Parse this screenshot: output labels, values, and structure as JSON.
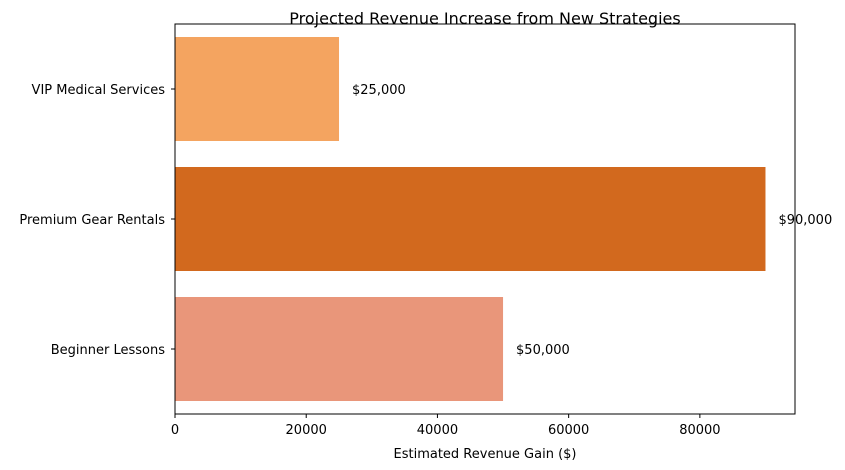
{
  "chart_data": {
    "type": "bar",
    "orientation": "horizontal",
    "title": "Projected Revenue Increase from New Strategies",
    "xlabel": "Estimated Revenue Gain ($)",
    "ylabel": "",
    "categories": [
      "VIP Medical Services",
      "Premium Gear Rentals",
      "Beginner Lessons"
    ],
    "values": [
      25000,
      90000,
      50000
    ],
    "data_labels": [
      "$25,000",
      "$90,000",
      "$50,000"
    ],
    "bar_colors": [
      "#F4A460",
      "#D2691E",
      "#E9967A"
    ],
    "xlim": [
      0,
      94500
    ],
    "xticks": [
      0,
      20000,
      40000,
      60000,
      80000
    ],
    "xtick_labels": [
      "0",
      "20000",
      "40000",
      "60000",
      "80000"
    ],
    "grid": false,
    "legend": "none"
  }
}
